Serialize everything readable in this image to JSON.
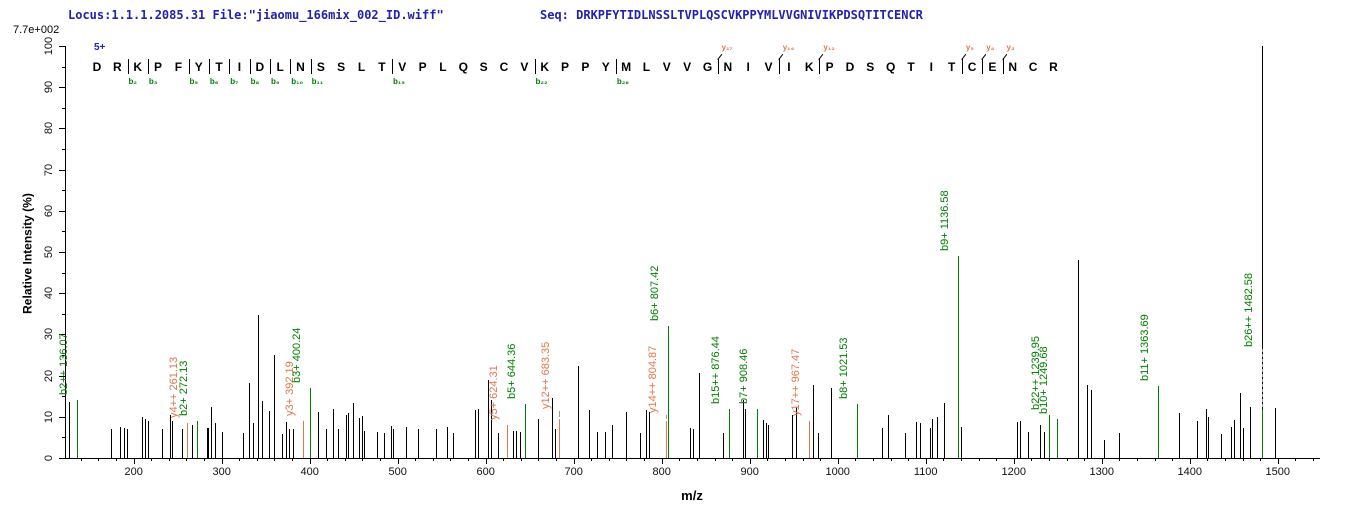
{
  "header": {
    "locus_file": "Locus:1.1.1.2085.31 File:\"jiaomu_166mix_002_ID.wiff\"",
    "seq_text": "Seq: DRKPFYTIDLNSSLTVPLQSCVKPPYMLVVGNIVIKPDSQTITCENCR"
  },
  "colors": {
    "header_text": "#2222b2",
    "b_ion_green": "#008000",
    "y_ion_orange": "#e0784b",
    "peak_black": "#000000",
    "leader_gray": "#9a9a9a"
  },
  "chart_data": {
    "type": "bar",
    "subtype": "ms2-fragmentation-spectrum",
    "xlabel": "m/z",
    "ylabel": "Relative  Intensity (%)",
    "y_scale_note": "7.7e+002",
    "precursor_charge": "5+",
    "xlim": [
      122,
      1548
    ],
    "ylim": [
      0,
      100
    ],
    "x_major_ticks": [
      200,
      300,
      400,
      500,
      600,
      700,
      800,
      900,
      1000,
      1100,
      1200,
      1300,
      1400,
      1500
    ],
    "x_minor_step": 20,
    "y_major_step": 10,
    "y_minor_step": 5,
    "grid": false,
    "sequence": "DRKPFYTIDLNSSLTVPLQSCVKPPYMLVVGNIVIKPDSQTITCENCR",
    "b_ion_marks": [
      {
        "before_index": 2,
        "label": "b₂"
      },
      {
        "before_index": 3,
        "label": "b₃"
      },
      {
        "before_index": 5,
        "label": "b₅"
      },
      {
        "before_index": 6,
        "label": "b₆"
      },
      {
        "before_index": 7,
        "label": "b₇"
      },
      {
        "before_index": 8,
        "label": "b₈"
      },
      {
        "before_index": 9,
        "label": "b₉"
      },
      {
        "before_index": 10,
        "label": "b₁₀"
      },
      {
        "before_index": 11,
        "label": "b₁₁"
      },
      {
        "before_index": 15,
        "label": "b₁₅"
      },
      {
        "before_index": 22,
        "label": "b₂₂"
      },
      {
        "before_index": 26,
        "label": "b₂₆"
      }
    ],
    "y_ion_marks": [
      {
        "before_index": 31,
        "label": "y₁₇"
      },
      {
        "before_index": 34,
        "label": "y₁₄"
      },
      {
        "before_index": 36,
        "label": "y₁₂"
      },
      {
        "before_index": 43,
        "label": "y₅"
      },
      {
        "before_index": 44,
        "label": "y₄"
      },
      {
        "before_index": 45,
        "label": "y₃"
      }
    ],
    "annotated_peaks": [
      {
        "label": "b2++ 136.07",
        "mz": 136.07,
        "intensity": 14,
        "ion": "b"
      },
      {
        "label": "y4++ 261.13",
        "mz": 261.13,
        "intensity": 8.5,
        "ion": "y"
      },
      {
        "label": "b2+ 272.13",
        "mz": 272.13,
        "intensity": 9,
        "ion": "b"
      },
      {
        "label": "y3+ 392.19",
        "mz": 392.19,
        "intensity": 9,
        "ion": "y"
      },
      {
        "label": "b3+ 400.24",
        "mz": 400.24,
        "intensity": 17,
        "ion": "b"
      },
      {
        "label": "y5+ 624.31",
        "mz": 624.31,
        "intensity": 8,
        "ion": "y"
      },
      {
        "label": "b5+ 644.36",
        "mz": 644.36,
        "intensity": 13,
        "ion": "b"
      },
      {
        "label": "y12++ 683.35",
        "mz": 683.35,
        "intensity": 9.5,
        "ion": "y",
        "label_from": 12
      },
      {
        "label": "y14++ 804.87",
        "mz": 804.87,
        "intensity": 9,
        "ion": "y",
        "label_from": 11
      },
      {
        "label": "b6+ 807.42",
        "mz": 807.42,
        "intensity": 32,
        "ion": "b"
      },
      {
        "label": "b15++ 876.44",
        "mz": 876.44,
        "intensity": 12,
        "ion": "b"
      },
      {
        "label": "b7+ 908.46",
        "mz": 908.46,
        "intensity": 12,
        "ion": "b"
      },
      {
        "label": "y17++ 967.47",
        "mz": 967.47,
        "intensity": 9,
        "ion": "y"
      },
      {
        "label": "b8+ 1021.53",
        "mz": 1021.53,
        "intensity": 13,
        "ion": "b"
      },
      {
        "label": "b9+ 1136.58",
        "mz": 1136.58,
        "intensity": 49,
        "ion": "b"
      },
      {
        "label": "b22++ 1239.95",
        "mz": 1239.95,
        "intensity": 10.5,
        "ion": "b"
      },
      {
        "label": "b10+ 1249.68",
        "mz": 1249.68,
        "intensity": 9.5,
        "ion": "b"
      },
      {
        "label": "b11+ 1363.69",
        "mz": 1363.69,
        "intensity": 17.5,
        "ion": "b"
      },
      {
        "label": "b26++ 1482.58",
        "mz": 1482.58,
        "intensity": 12,
        "ion": "b",
        "label_from": 27
      }
    ],
    "unannotated_peaks": [
      [
        127,
        13.5
      ],
      [
        174,
        7
      ],
      [
        185,
        7.5
      ],
      [
        189,
        7.3
      ],
      [
        192,
        7
      ],
      [
        209,
        10
      ],
      [
        213,
        9.5
      ],
      [
        216,
        9
      ],
      [
        232,
        7
      ],
      [
        241,
        10.5
      ],
      [
        244,
        9
      ],
      [
        255,
        7
      ],
      [
        266,
        8
      ],
      [
        283,
        7.4
      ],
      [
        285,
        7.2
      ],
      [
        288,
        12.4
      ],
      [
        293,
        8.6
      ],
      [
        300,
        6.2
      ],
      [
        324,
        6
      ],
      [
        331,
        18.3
      ],
      [
        336,
        8.4
      ],
      [
        341,
        34.7
      ],
      [
        346,
        13.8
      ],
      [
        354,
        11.5
      ],
      [
        359,
        25
      ],
      [
        368,
        5.8
      ],
      [
        373,
        8.8
      ],
      [
        377,
        7
      ],
      [
        381,
        7
      ],
      [
        410,
        11.2
      ],
      [
        419,
        7
      ],
      [
        426,
        11.8
      ],
      [
        432,
        7
      ],
      [
        441,
        10.5
      ],
      [
        444,
        11
      ],
      [
        449,
        13.3
      ],
      [
        456,
        9.6
      ],
      [
        460,
        10.2
      ],
      [
        462,
        6.5
      ],
      [
        476,
        6.4
      ],
      [
        484,
        6.1
      ],
      [
        492,
        7.7
      ],
      [
        495,
        7
      ],
      [
        510,
        7.5
      ],
      [
        523,
        7
      ],
      [
        544,
        7
      ],
      [
        556,
        7.5
      ],
      [
        563,
        6
      ],
      [
        588,
        11.7
      ],
      [
        591,
        12
      ],
      [
        603,
        18.9
      ],
      [
        606,
        14
      ],
      [
        614,
        6
      ],
      [
        631,
        6.5
      ],
      [
        635,
        6.5
      ],
      [
        639,
        6.3
      ],
      [
        659,
        9.5
      ],
      [
        675,
        14.6
      ],
      [
        679,
        7
      ],
      [
        705,
        22.3
      ],
      [
        717,
        11.7
      ],
      [
        727,
        6.3
      ],
      [
        736,
        6.3
      ],
      [
        743,
        8
      ],
      [
        760,
        11.2
      ],
      [
        775,
        6
      ],
      [
        782,
        11.7
      ],
      [
        786,
        11.2
      ],
      [
        832,
        7.2
      ],
      [
        836,
        7
      ],
      [
        842,
        20.6
      ],
      [
        870,
        6
      ],
      [
        892,
        14.1
      ],
      [
        895,
        12
      ],
      [
        915,
        9.3
      ],
      [
        918,
        8.6
      ],
      [
        921,
        8
      ],
      [
        948,
        10.4
      ],
      [
        953,
        12.4
      ],
      [
        972,
        17.7
      ],
      [
        978,
        6
      ],
      [
        992,
        17
      ],
      [
        1050,
        7.2
      ],
      [
        1057,
        10.4
      ],
      [
        1077,
        6
      ],
      [
        1089,
        8.8
      ],
      [
        1094,
        8.6
      ],
      [
        1105,
        7.2
      ],
      [
        1107,
        9.5
      ],
      [
        1113,
        10
      ],
      [
        1121,
        13.3
      ],
      [
        1140,
        7.5
      ],
      [
        1204,
        8.8
      ],
      [
        1207,
        9
      ],
      [
        1216,
        6.3
      ],
      [
        1230,
        8
      ],
      [
        1234,
        6.3
      ],
      [
        1273,
        48
      ],
      [
        1283,
        17.7
      ],
      [
        1288,
        16.5
      ],
      [
        1303,
        4.4
      ],
      [
        1320,
        6
      ],
      [
        1388,
        11
      ],
      [
        1408,
        9
      ],
      [
        1419,
        11.9
      ],
      [
        1421,
        10
      ],
      [
        1436,
        5.8
      ],
      [
        1447,
        7.5
      ],
      [
        1450,
        9.3
      ],
      [
        1457,
        15.8
      ],
      [
        1460,
        7.3
      ],
      [
        1468,
        12.4
      ],
      [
        1482.6,
        100
      ],
      [
        1497,
        12.1
      ]
    ]
  }
}
